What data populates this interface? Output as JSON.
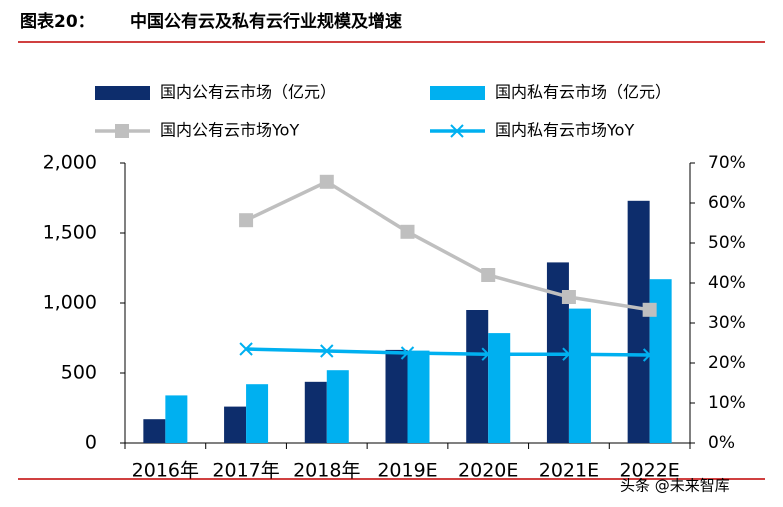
{
  "chart_data": {
    "type": "bar",
    "figure_label": "图表20：",
    "title": "中国公有云及私有云行业规模及增速",
    "watermark": "头条 @未来智库",
    "categories": [
      "2016年",
      "2017年",
      "2018年",
      "2019E",
      "2020E",
      "2021E",
      "2022E"
    ],
    "series": [
      {
        "name": "国内公有云市场（亿元）",
        "type": "bar",
        "color": "#0d2d6c",
        "values": [
          170,
          260,
          437,
          665,
          950,
          1290,
          1730
        ]
      },
      {
        "name": "国内私有云市场（亿元）",
        "type": "bar",
        "color": "#00b0f0",
        "values": [
          340,
          420,
          520,
          660,
          785,
          960,
          1170
        ]
      },
      {
        "name": "国内公有云市场YoY",
        "type": "line",
        "axis": "y2",
        "marker": "square",
        "color": "#bfbfbf",
        "values": [
          null,
          55.7,
          65.3,
          52.8,
          42,
          36.5,
          33.3
        ]
      },
      {
        "name": "国内私有云市场YoY",
        "type": "line",
        "axis": "y2",
        "marker": "x",
        "color": "#00b0f0",
        "values": [
          null,
          23.5,
          23,
          22.5,
          22.2,
          22.2,
          22
        ]
      }
    ],
    "ylim": [
      0,
      2000
    ],
    "yticks": [
      0,
      500,
      {
        "value": 1000,
        "label": "1,000"
      },
      {
        "value": 1500,
        "label": "1,500"
      },
      {
        "value": 2000,
        "label": "2,000"
      }
    ],
    "y2lim": [
      0,
      70
    ],
    "y2ticks": [
      {
        "value": 0,
        "label": "0%"
      },
      {
        "value": 10,
        "label": "10%"
      },
      {
        "value": 20,
        "label": "20%"
      },
      {
        "value": 30,
        "label": "30%"
      },
      {
        "value": 40,
        "label": "40%"
      },
      {
        "value": 50,
        "label": "50%"
      },
      {
        "value": 60,
        "label": "60%"
      },
      {
        "value": 70,
        "label": "70%"
      }
    ],
    "grid": false
  }
}
